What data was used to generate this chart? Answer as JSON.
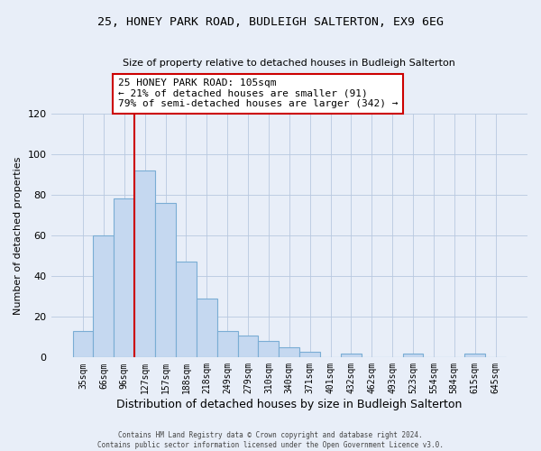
{
  "title_line1": "25, HONEY PARK ROAD, BUDLEIGH SALTERTON, EX9 6EG",
  "title_line2": "Size of property relative to detached houses in Budleigh Salterton",
  "xlabel": "Distribution of detached houses by size in Budleigh Salterton",
  "ylabel": "Number of detached properties",
  "bar_labels": [
    "35sqm",
    "66sqm",
    "96sqm",
    "127sqm",
    "157sqm",
    "188sqm",
    "218sqm",
    "249sqm",
    "279sqm",
    "310sqm",
    "340sqm",
    "371sqm",
    "401sqm",
    "432sqm",
    "462sqm",
    "493sqm",
    "523sqm",
    "554sqm",
    "584sqm",
    "615sqm",
    "645sqm"
  ],
  "bar_values": [
    13,
    60,
    78,
    92,
    76,
    47,
    29,
    13,
    11,
    8,
    5,
    3,
    0,
    2,
    0,
    0,
    2,
    0,
    0,
    2,
    0
  ],
  "bar_color": "#c5d8f0",
  "bar_edgecolor": "#7aadd4",
  "vline_color": "#cc0000",
  "ylim": [
    0,
    120
  ],
  "yticks": [
    0,
    20,
    40,
    60,
    80,
    100,
    120
  ],
  "annotation_title": "25 HONEY PARK ROAD: 105sqm",
  "annotation_line2": "← 21% of detached houses are smaller (91)",
  "annotation_line3": "79% of semi-detached houses are larger (342) →",
  "footer_line1": "Contains HM Land Registry data © Crown copyright and database right 2024.",
  "footer_line2": "Contains public sector information licensed under the Open Government Licence v3.0.",
  "background_color": "#e8eef8",
  "plot_background": "#e8eef8",
  "grid_color": "#b8c8e0"
}
